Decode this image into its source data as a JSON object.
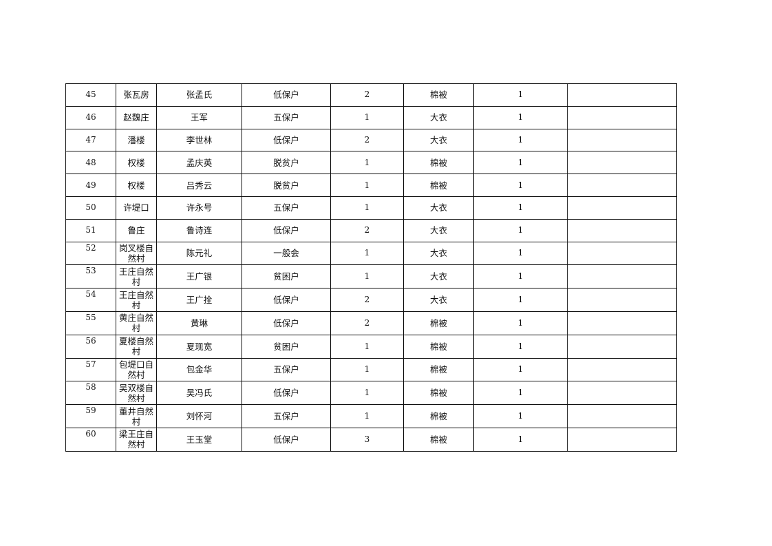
{
  "table": {
    "rows": [
      [
        "45",
        "张瓦房",
        "张孟氏",
        "低保户",
        "2",
        "棉被",
        "1",
        ""
      ],
      [
        "46",
        "赵魏庄",
        "王军",
        "五保户",
        "1",
        "大衣",
        "1",
        ""
      ],
      [
        "47",
        "潘楼",
        "李世林",
        "低保户",
        "2",
        "大衣",
        "1",
        ""
      ],
      [
        "48",
        "权楼",
        "孟庆英",
        "脱贫户",
        "1",
        "棉被",
        "1",
        ""
      ],
      [
        "49",
        "权楼",
        "吕秀云",
        "脱贫户",
        "1",
        "棉被",
        "1",
        ""
      ],
      [
        "50",
        "许堤口",
        "许永号",
        "五保户",
        "1",
        "大衣",
        "1",
        ""
      ],
      [
        "51",
        "鲁庄",
        "鲁诗连",
        "低保户",
        "2",
        "大衣",
        "1",
        ""
      ],
      [
        "52",
        "岗叉楼自然村",
        "陈元礼",
        "一般会",
        "1",
        "大衣",
        "1",
        ""
      ],
      [
        "53",
        "王庄自然村",
        "王广银",
        "贫困户",
        "1",
        "大衣",
        "1",
        ""
      ],
      [
        "54",
        "王庄自然村",
        "王广拴",
        "低保户",
        "2",
        "大衣",
        "1",
        ""
      ],
      [
        "55",
        "黄庄自然村",
        "黄琳",
        "低保户",
        "2",
        "棉被",
        "1",
        ""
      ],
      [
        "56",
        "夏楼自然村",
        "夏现宽",
        "贫困户",
        "1",
        "棉被",
        "1",
        ""
      ],
      [
        "57",
        "包堤口自然村",
        "包金华",
        "五保户",
        "1",
        "棉被",
        "1",
        ""
      ],
      [
        "58",
        "吴双楼自然村",
        "吴冯氏",
        "低保户",
        "1",
        "棉被",
        "1",
        ""
      ],
      [
        "59",
        "董井自然村",
        "刘怀河",
        "五保户",
        "1",
        "棉被",
        "1",
        ""
      ],
      [
        "60",
        "梁王庄自然村",
        "王玉堂",
        "低保户",
        "3",
        "棉被",
        "1",
        ""
      ]
    ]
  }
}
